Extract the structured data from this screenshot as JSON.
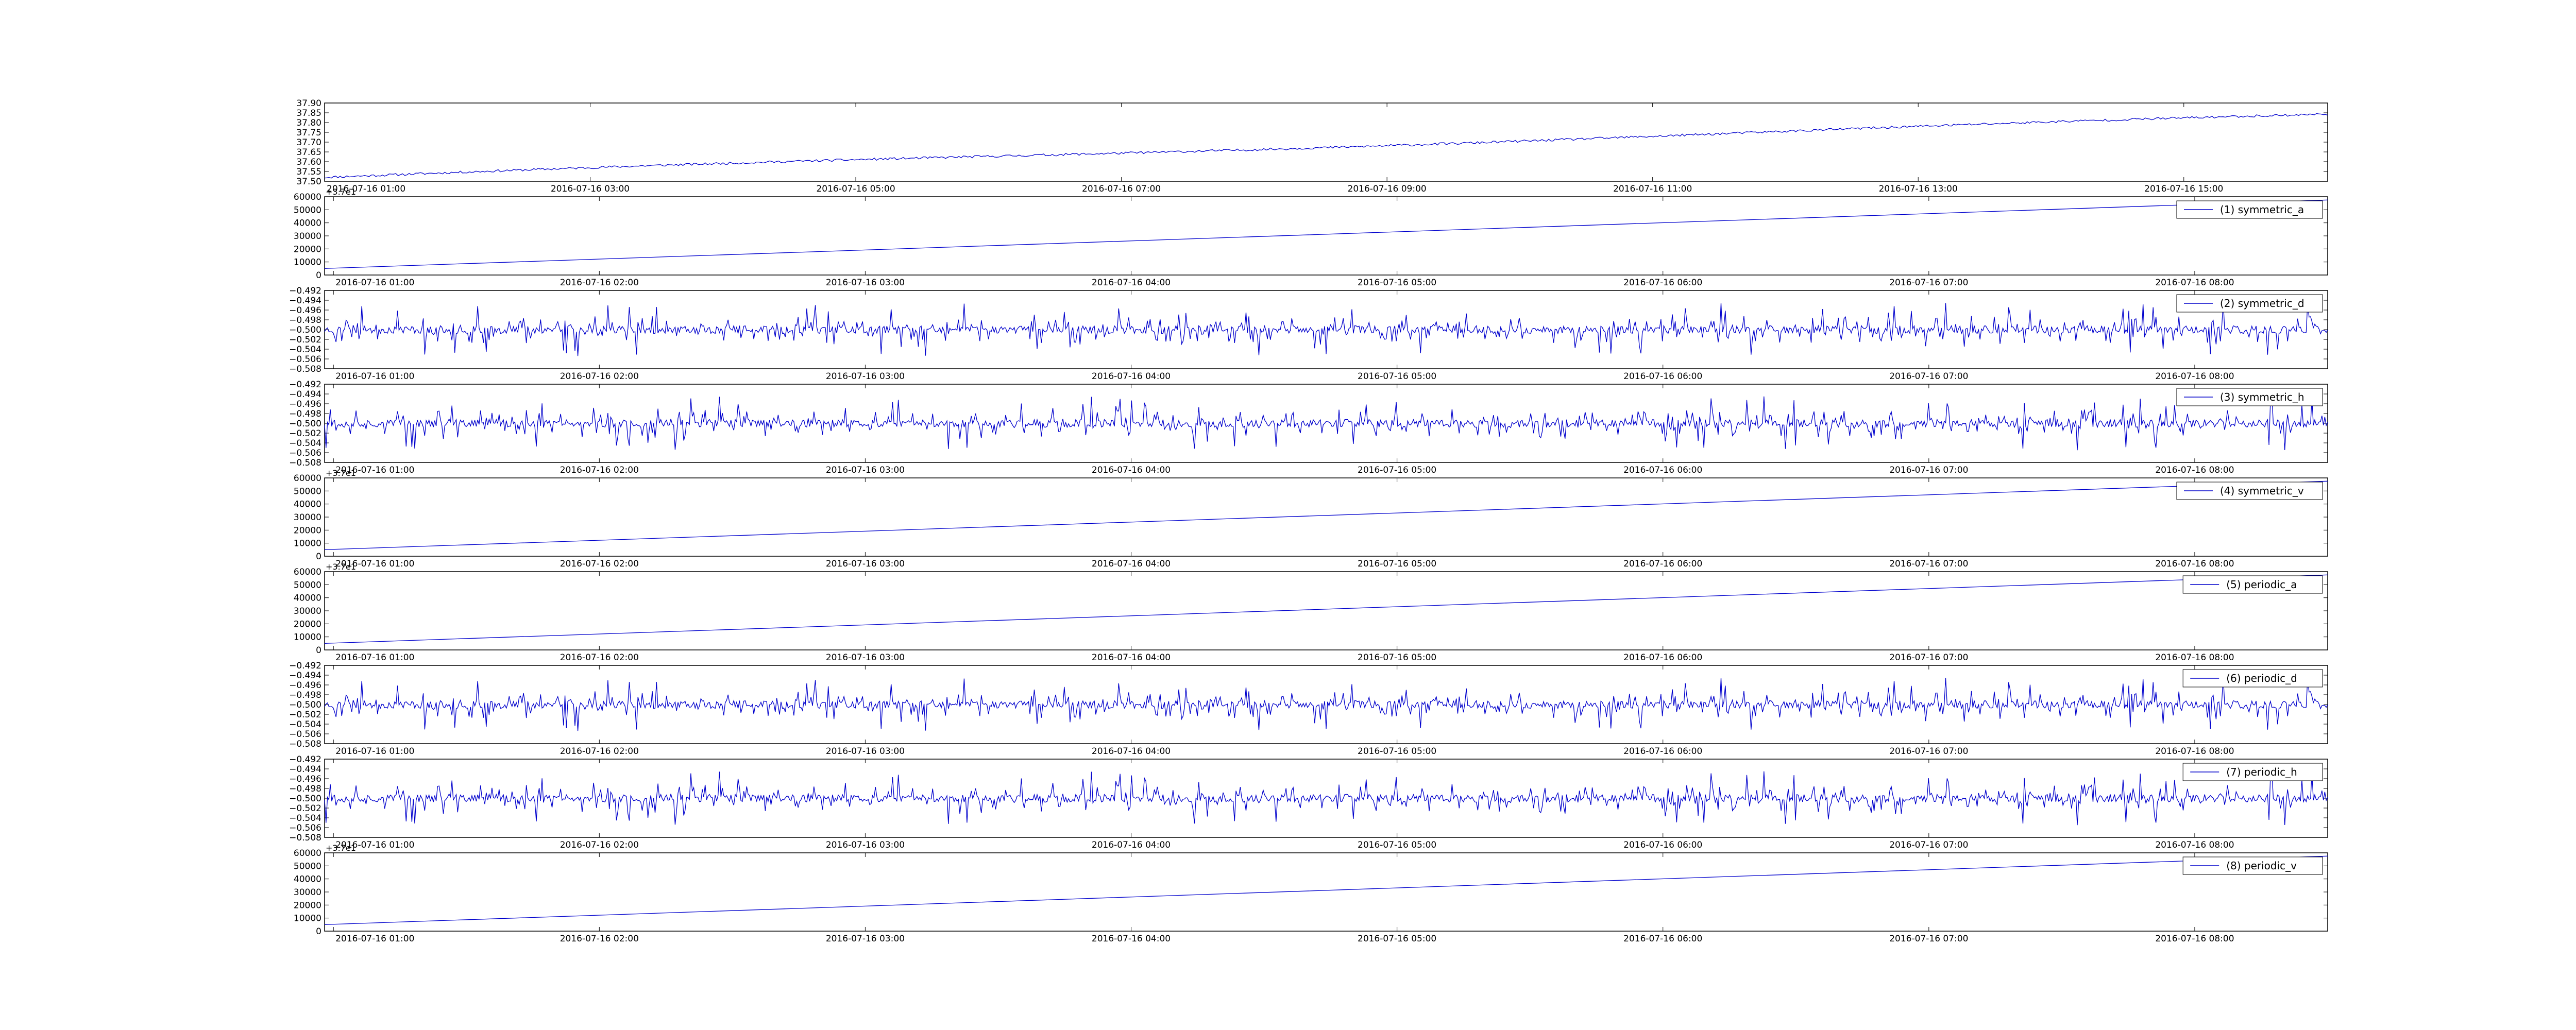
{
  "figure": {
    "background": "#ffffff",
    "line_color": "#0000cc"
  },
  "chart_data": [
    {
      "type": "line",
      "legend": "",
      "offset_text": "",
      "yticks": [
        "37.50",
        "37.55",
        "37.60",
        "37.65",
        "37.70",
        "37.75",
        "37.80",
        "37.85",
        "37.90"
      ],
      "ylim": [
        37.5,
        37.9
      ],
      "xticks": [
        "2016-07-16 01:00",
        "2016-07-16 03:00",
        "2016-07-16 05:00",
        "2016-07-16 07:00",
        "2016-07-16 09:00",
        "2016-07-16 11:00",
        "2016-07-16 13:00",
        "2016-07-16 15:00"
      ],
      "x_start": "2016-07-16 01:00",
      "x_end": "2016-07-16 16:05",
      "series": [
        {
          "shape": "trend_noise",
          "start": 37.52,
          "end": 37.84,
          "noise": 0.006,
          "seed": 11
        }
      ]
    },
    {
      "type": "line",
      "legend": "(1) symmetric_a",
      "offset_text": "+3.7e1",
      "yticks": [
        "0",
        "10000",
        "20000",
        "30000",
        "40000",
        "50000",
        "60000"
      ],
      "ylim": [
        0,
        60000
      ],
      "xticks": [
        "2016-07-16 01:00",
        "2016-07-16 02:00",
        "2016-07-16 03:00",
        "2016-07-16 04:00",
        "2016-07-16 05:00",
        "2016-07-16 06:00",
        "2016-07-16 07:00",
        "2016-07-16 08:00"
      ],
      "x_start": "2016-07-16 00:58",
      "x_end": "2016-07-16 08:30",
      "series": [
        {
          "shape": "linear",
          "start": 5000,
          "end": 57500
        }
      ]
    },
    {
      "type": "line",
      "legend": "(2) symmetric_d",
      "offset_text": "",
      "yticks": [
        "−0.508",
        "−0.506",
        "−0.504",
        "−0.502",
        "−0.500",
        "−0.498",
        "−0.496",
        "−0.494",
        "−0.492"
      ],
      "ylim": [
        -0.508,
        -0.492
      ],
      "xticks": [
        "2016-07-16 01:00",
        "2016-07-16 02:00",
        "2016-07-16 03:00",
        "2016-07-16 04:00",
        "2016-07-16 05:00",
        "2016-07-16 06:00",
        "2016-07-16 07:00",
        "2016-07-16 08:00"
      ],
      "x_start": "2016-07-16 00:58",
      "x_end": "2016-07-16 08:30",
      "series": [
        {
          "shape": "noise",
          "center": -0.5,
          "amp": 0.0055,
          "seed": 23
        }
      ]
    },
    {
      "type": "line",
      "legend": "(3) symmetric_h",
      "offset_text": "",
      "yticks": [
        "−0.508",
        "−0.506",
        "−0.504",
        "−0.502",
        "−0.500",
        "−0.498",
        "−0.496",
        "−0.494",
        "−0.492"
      ],
      "ylim": [
        -0.508,
        -0.492
      ],
      "xticks": [
        "2016-07-16 01:00",
        "2016-07-16 02:00",
        "2016-07-16 03:00",
        "2016-07-16 04:00",
        "2016-07-16 05:00",
        "2016-07-16 06:00",
        "2016-07-16 07:00",
        "2016-07-16 08:00"
      ],
      "x_start": "2016-07-16 00:58",
      "x_end": "2016-07-16 08:30",
      "series": [
        {
          "shape": "noise",
          "center": -0.5,
          "amp": 0.0055,
          "seed": 37
        }
      ]
    },
    {
      "type": "line",
      "legend": "(4) symmetric_v",
      "offset_text": "+3.7e1",
      "yticks": [
        "0",
        "10000",
        "20000",
        "30000",
        "40000",
        "50000",
        "60000"
      ],
      "ylim": [
        0,
        60000
      ],
      "xticks": [
        "2016-07-16 01:00",
        "2016-07-16 02:00",
        "2016-07-16 03:00",
        "2016-07-16 04:00",
        "2016-07-16 05:00",
        "2016-07-16 06:00",
        "2016-07-16 07:00",
        "2016-07-16 08:00"
      ],
      "x_start": "2016-07-16 00:58",
      "x_end": "2016-07-16 08:30",
      "series": [
        {
          "shape": "linear",
          "start": 5000,
          "end": 57500
        }
      ]
    },
    {
      "type": "line",
      "legend": "(5) periodic_a",
      "offset_text": "+3.7e1",
      "yticks": [
        "0",
        "10000",
        "20000",
        "30000",
        "40000",
        "50000",
        "60000"
      ],
      "ylim": [
        0,
        60000
      ],
      "xticks": [
        "2016-07-16 01:00",
        "2016-07-16 02:00",
        "2016-07-16 03:00",
        "2016-07-16 04:00",
        "2016-07-16 05:00",
        "2016-07-16 06:00",
        "2016-07-16 07:00",
        "2016-07-16 08:00"
      ],
      "x_start": "2016-07-16 00:58",
      "x_end": "2016-07-16 08:30",
      "series": [
        {
          "shape": "linear",
          "start": 5000,
          "end": 57500
        }
      ]
    },
    {
      "type": "line",
      "legend": "(6) periodic_d",
      "offset_text": "",
      "yticks": [
        "−0.508",
        "−0.506",
        "−0.504",
        "−0.502",
        "−0.500",
        "−0.498",
        "−0.496",
        "−0.494",
        "−0.492"
      ],
      "ylim": [
        -0.508,
        -0.492
      ],
      "xticks": [
        "2016-07-16 01:00",
        "2016-07-16 02:00",
        "2016-07-16 03:00",
        "2016-07-16 04:00",
        "2016-07-16 05:00",
        "2016-07-16 06:00",
        "2016-07-16 07:00",
        "2016-07-16 08:00"
      ],
      "x_start": "2016-07-16 00:58",
      "x_end": "2016-07-16 08:30",
      "series": [
        {
          "shape": "noise",
          "center": -0.5,
          "amp": 0.0055,
          "seed": 23
        }
      ]
    },
    {
      "type": "line",
      "legend": "(7) periodic_h",
      "offset_text": "",
      "yticks": [
        "−0.508",
        "−0.506",
        "−0.504",
        "−0.502",
        "−0.500",
        "−0.498",
        "−0.496",
        "−0.494",
        "−0.492"
      ],
      "ylim": [
        -0.508,
        -0.492
      ],
      "xticks": [
        "2016-07-16 01:00",
        "2016-07-16 02:00",
        "2016-07-16 03:00",
        "2016-07-16 04:00",
        "2016-07-16 05:00",
        "2016-07-16 06:00",
        "2016-07-16 07:00",
        "2016-07-16 08:00"
      ],
      "x_start": "2016-07-16 00:58",
      "x_end": "2016-07-16 08:30",
      "series": [
        {
          "shape": "noise",
          "center": -0.5,
          "amp": 0.0055,
          "seed": 37
        }
      ]
    },
    {
      "type": "line",
      "legend": "(8) periodic_v",
      "offset_text": "+3.7e1",
      "yticks": [
        "0",
        "10000",
        "20000",
        "30000",
        "40000",
        "50000",
        "60000"
      ],
      "ylim": [
        0,
        60000
      ],
      "xticks": [
        "2016-07-16 01:00",
        "2016-07-16 02:00",
        "2016-07-16 03:00",
        "2016-07-16 04:00",
        "2016-07-16 05:00",
        "2016-07-16 06:00",
        "2016-07-16 07:00",
        "2016-07-16 08:00"
      ],
      "x_start": "2016-07-16 00:58",
      "x_end": "2016-07-16 08:30",
      "series": [
        {
          "shape": "linear",
          "start": 5000,
          "end": 57500
        }
      ]
    }
  ]
}
